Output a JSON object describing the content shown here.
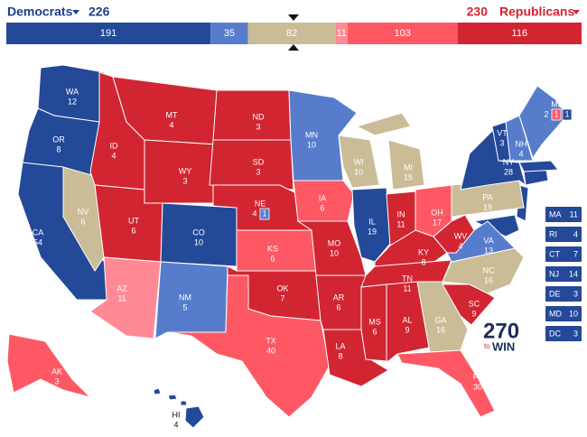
{
  "header": {
    "dem_label": "Democrats",
    "dem_total": 226,
    "rep_total": 230,
    "rep_label": "Republicans"
  },
  "bar": [
    {
      "value": 191,
      "color": "#244999"
    },
    {
      "value": 35,
      "color": "#577ccc"
    },
    {
      "value": 82,
      "color": "#c9bc96"
    },
    {
      "value": 11,
      "color": "#ff8a96"
    },
    {
      "value": 103,
      "color": "#ff5865"
    },
    {
      "value": 116,
      "color": "#d22532"
    }
  ],
  "states": [
    {
      "abbr": "WA",
      "votes": 12,
      "color": "#244999"
    },
    {
      "abbr": "OR",
      "votes": 8,
      "color": "#244999"
    },
    {
      "abbr": "CA",
      "votes": 54,
      "color": "#244999"
    },
    {
      "abbr": "NV",
      "votes": 6,
      "color": "#c9bc96"
    },
    {
      "abbr": "ID",
      "votes": 4,
      "color": "#d22532"
    },
    {
      "abbr": "MT",
      "votes": 4,
      "color": "#d22532"
    },
    {
      "abbr": "WY",
      "votes": 3,
      "color": "#d22532"
    },
    {
      "abbr": "UT",
      "votes": 6,
      "color": "#d22532"
    },
    {
      "abbr": "AZ",
      "votes": 11,
      "color": "#ff8a96"
    },
    {
      "abbr": "CO",
      "votes": 10,
      "color": "#244999"
    },
    {
      "abbr": "NM",
      "votes": 5,
      "color": "#577ccc"
    },
    {
      "abbr": "ND",
      "votes": 3,
      "color": "#d22532"
    },
    {
      "abbr": "SD",
      "votes": 3,
      "color": "#d22532"
    },
    {
      "abbr": "NE",
      "votes": 4,
      "color": "#d22532",
      "splits": [
        {
          "votes": 1,
          "color": "#577ccc"
        }
      ]
    },
    {
      "abbr": "KS",
      "votes": 6,
      "color": "#ff5865"
    },
    {
      "abbr": "OK",
      "votes": 7,
      "color": "#d22532"
    },
    {
      "abbr": "TX",
      "votes": 40,
      "color": "#ff5865"
    },
    {
      "abbr": "MN",
      "votes": 10,
      "color": "#577ccc"
    },
    {
      "abbr": "IA",
      "votes": 6,
      "color": "#ff5865"
    },
    {
      "abbr": "MO",
      "votes": 10,
      "color": "#d22532"
    },
    {
      "abbr": "AR",
      "votes": 6,
      "color": "#d22532"
    },
    {
      "abbr": "LA",
      "votes": 8,
      "color": "#d22532"
    },
    {
      "abbr": "WI",
      "votes": 10,
      "color": "#c9bc96"
    },
    {
      "abbr": "IL",
      "votes": 19,
      "color": "#244999"
    },
    {
      "abbr": "MI",
      "votes": 15,
      "color": "#c9bc96"
    },
    {
      "abbr": "IN",
      "votes": 11,
      "color": "#d22532"
    },
    {
      "abbr": "OH",
      "votes": 17,
      "color": "#ff5865"
    },
    {
      "abbr": "KY",
      "votes": 8,
      "color": "#d22532"
    },
    {
      "abbr": "TN",
      "votes": 11,
      "color": "#d22532"
    },
    {
      "abbr": "MS",
      "votes": 6,
      "color": "#d22532"
    },
    {
      "abbr": "AL",
      "votes": 9,
      "color": "#d22532"
    },
    {
      "abbr": "GA",
      "votes": 16,
      "color": "#c9bc96"
    },
    {
      "abbr": "FL",
      "votes": 30,
      "color": "#ff5865"
    },
    {
      "abbr": "SC",
      "votes": 9,
      "color": "#d22532"
    },
    {
      "abbr": "NC",
      "votes": 16,
      "color": "#c9bc96"
    },
    {
      "abbr": "VA",
      "votes": 13,
      "color": "#577ccc"
    },
    {
      "abbr": "WV",
      "votes": 4,
      "color": "#d22532"
    },
    {
      "abbr": "PA",
      "votes": 19,
      "color": "#c9bc96"
    },
    {
      "abbr": "NY",
      "votes": 28,
      "color": "#244999"
    },
    {
      "abbr": "VT",
      "votes": 3,
      "color": "#244999"
    },
    {
      "abbr": "NH",
      "votes": 4,
      "color": "#577ccc"
    },
    {
      "abbr": "ME",
      "votes": 2,
      "color": "#577ccc",
      "splits": [
        {
          "votes": 1,
          "color": "#ff5865"
        },
        {
          "votes": 1,
          "color": "#244999"
        }
      ]
    },
    {
      "abbr": "AK",
      "votes": 3,
      "color": "#ff5865"
    },
    {
      "abbr": "HI",
      "votes": 4,
      "color": "#244999"
    }
  ],
  "small_states": [
    {
      "abbr": "MA",
      "votes": 11
    },
    {
      "abbr": "RI",
      "votes": 4
    },
    {
      "abbr": "CT",
      "votes": 7
    },
    {
      "abbr": "NJ",
      "votes": 14
    },
    {
      "abbr": "DE",
      "votes": 3
    },
    {
      "abbr": "MD",
      "votes": 10
    },
    {
      "abbr": "DC",
      "votes": 3
    }
  ],
  "logo": {
    "number": "270",
    "to": "to",
    "win": "WIN"
  }
}
